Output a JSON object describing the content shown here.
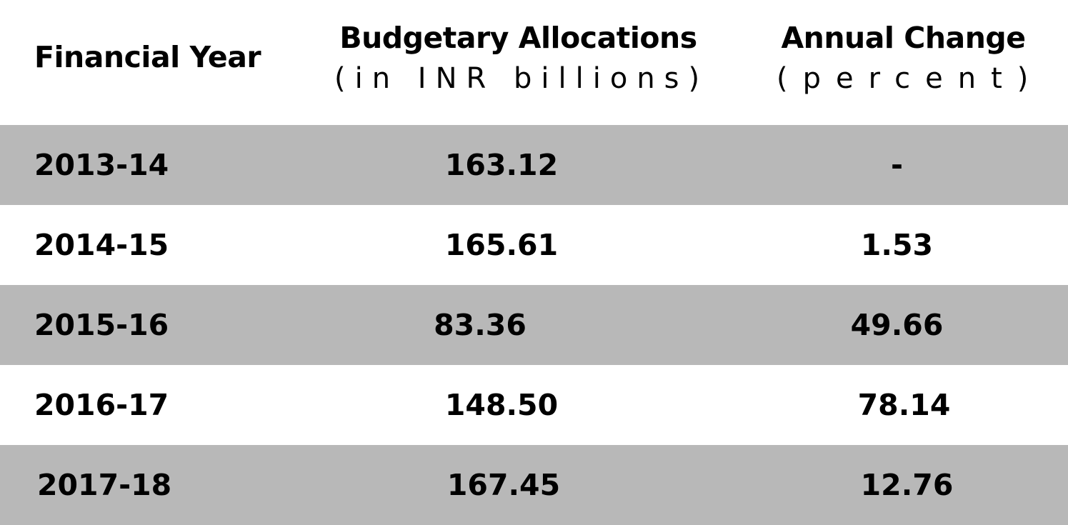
{
  "chart_data": {
    "type": "table",
    "columns": [
      {
        "title": "Financial Year",
        "subtitle": ""
      },
      {
        "title": "Budgetary Allocations",
        "subtitle": "(in INR billions)"
      },
      {
        "title": "Annual Change",
        "subtitle": "(percent)"
      }
    ],
    "rows": [
      {
        "year": "2013-14",
        "allocation": "163.12",
        "change": "-"
      },
      {
        "year": "2014-15",
        "allocation": "165.61",
        "change": "1.53"
      },
      {
        "year": "2015-16",
        "allocation": "83.36",
        "change": "49.66"
      },
      {
        "year": "2016-17",
        "allocation": "148.50",
        "change": "78.14"
      },
      {
        "year": "2017-18",
        "allocation": "167.45",
        "change": "12.76"
      }
    ],
    "colors": {
      "shaded_row": "#b8b8b8",
      "plain_row": "#ffffff",
      "text": "#000000"
    }
  }
}
